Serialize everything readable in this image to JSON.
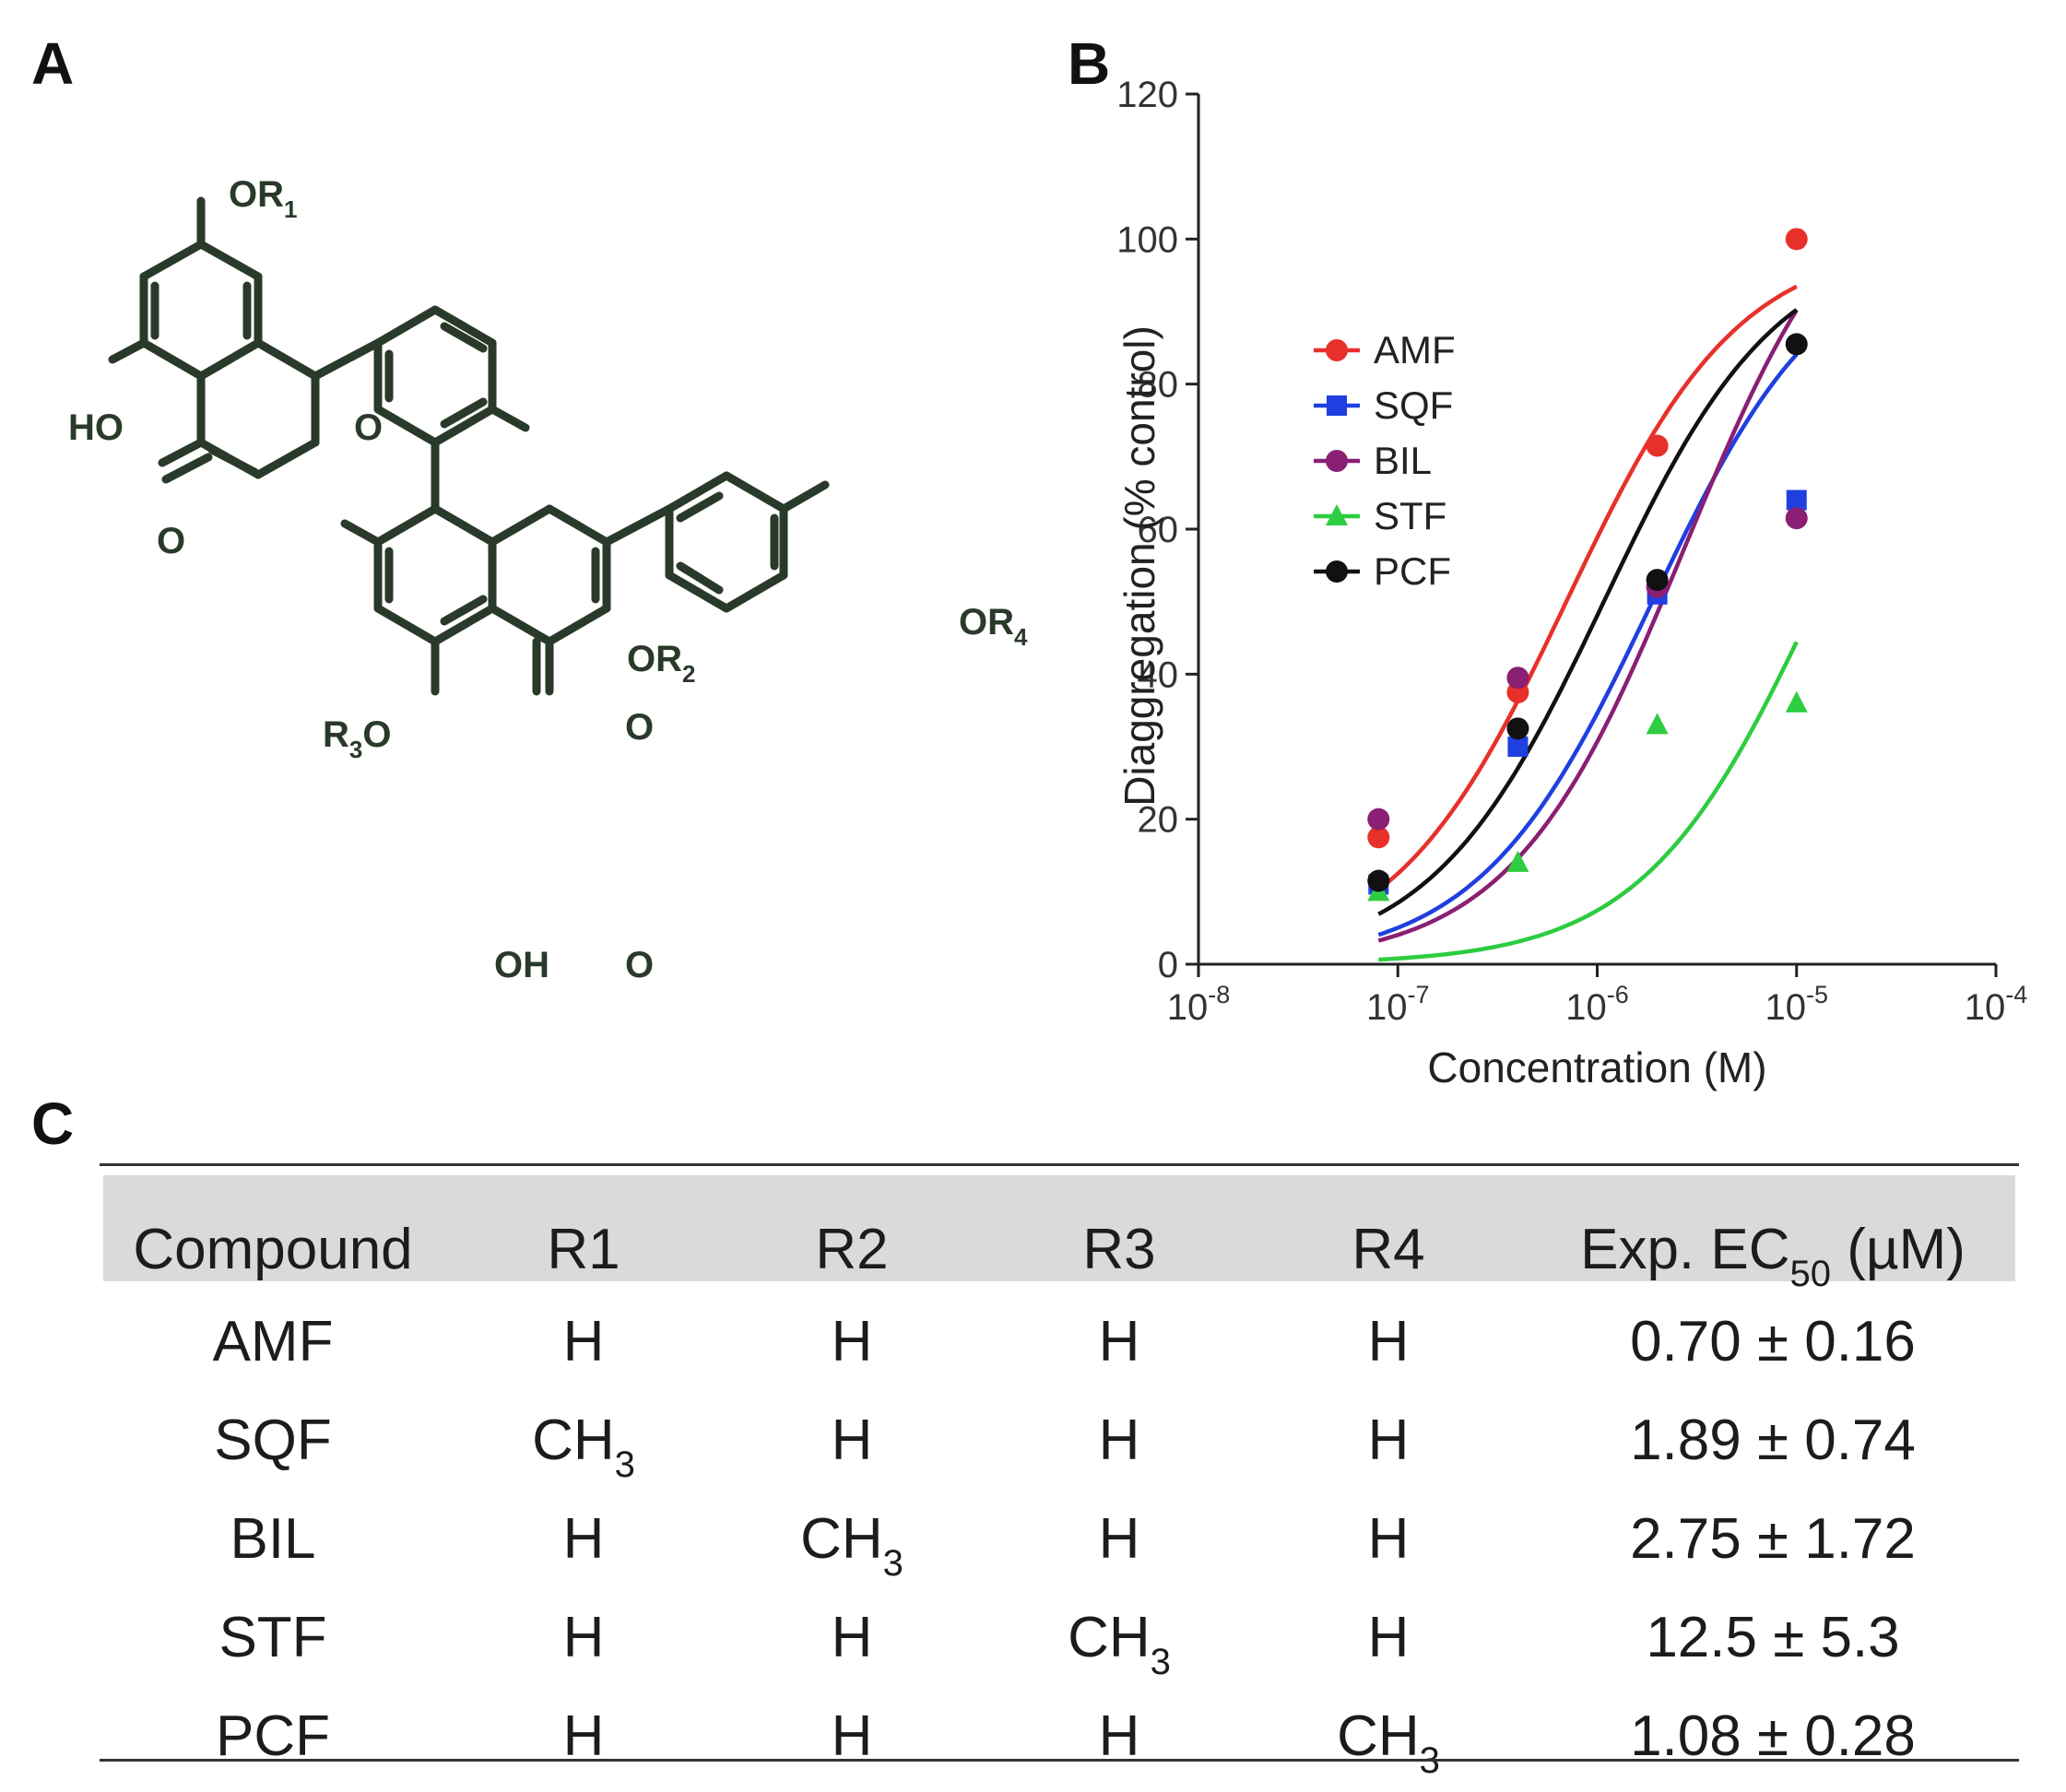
{
  "panels": {
    "a": "A",
    "b": "B",
    "c": "C"
  },
  "structure": {
    "labels": {
      "or1": "OR",
      "or1_sub": "1",
      "or2": "OR",
      "or2_sub": "2",
      "or4": "OR",
      "or4_sub": "4",
      "r3o_r": "R",
      "r3o_sub": "3",
      "r3o_o": "O",
      "ho_top": "HO",
      "o_ring1": "O",
      "o_keto1": "O",
      "o_ring2": "O",
      "oh_bottom": "OH",
      "o_keto2": "O"
    },
    "line_color": "#2a3a2a"
  },
  "chart_data": {
    "type": "scatter",
    "ylabel": "Diaggregation (% control)",
    "xlabel": "Concentration (M)",
    "x_scale": "log",
    "xlim": [
      1e-08,
      0.0001
    ],
    "ylim": [
      0,
      120
    ],
    "x_ticks": [
      {
        "base": "10",
        "exp": "-8",
        "value": 1e-08
      },
      {
        "base": "10",
        "exp": "-7",
        "value": 1e-07
      },
      {
        "base": "10",
        "exp": "-6",
        "value": 1e-06
      },
      {
        "base": "10",
        "exp": "-5",
        "value": 1e-05
      },
      {
        "base": "10",
        "exp": "-4",
        "value": 0.0001
      }
    ],
    "y_ticks": [
      0,
      20,
      40,
      60,
      80,
      100,
      120
    ],
    "legend_position": "left",
    "x": [
      8e-08,
      4e-07,
      2e-06,
      1e-05
    ],
    "series": [
      {
        "name": "AMF",
        "color": "#e8302a",
        "marker": "circle",
        "values": [
          17.5,
          37.5,
          71.5,
          100
        ],
        "ec50_uM": 0.7,
        "top": 100
      },
      {
        "name": "SQF",
        "color": "#1f3fe0",
        "marker": "square",
        "values": [
          11,
          30,
          51,
          64
        ],
        "ec50_uM": 1.89,
        "top": 100
      },
      {
        "name": "BIL",
        "color": "#8a1f73",
        "marker": "circle",
        "values": [
          20,
          39.5,
          52,
          61.5
        ],
        "ec50_uM": 2.75,
        "top": 115
      },
      {
        "name": "STF",
        "color": "#2ecc40",
        "marker": "triangle",
        "values": [
          10,
          14,
          33,
          36
        ],
        "ec50_uM": 12.5,
        "top": 100
      },
      {
        "name": "PCF",
        "color": "#111111",
        "marker": "circle",
        "values": [
          11.5,
          32.5,
          53,
          85.5
        ],
        "ec50_uM": 1.08,
        "top": 100
      }
    ]
  },
  "table": {
    "headers": [
      "Compound",
      "R1",
      "R2",
      "R3",
      "R4"
    ],
    "ec50_header": {
      "pre": "Exp. EC",
      "sub": "50",
      "post": " (µM)"
    },
    "rows": [
      {
        "compound": "AMF",
        "r1": "H",
        "r2": "H",
        "r3": "H",
        "r4": "H",
        "ec50": "0.70 ± 0.16"
      },
      {
        "compound": "SQF",
        "r1": {
          "base": "CH",
          "sub": "3"
        },
        "r2": "H",
        "r3": "H",
        "r4": "H",
        "ec50": "1.89 ± 0.74"
      },
      {
        "compound": "BIL",
        "r1": "H",
        "r2": {
          "base": "CH",
          "sub": "3"
        },
        "r3": "H",
        "r4": "H",
        "ec50": "2.75 ± 1.72"
      },
      {
        "compound": "STF",
        "r1": "H",
        "r2": "H",
        "r3": {
          "base": "CH",
          "sub": "3"
        },
        "r4": "H",
        "ec50": "12.5 ± 5.3"
      },
      {
        "compound": "PCF",
        "r1": "H",
        "r2": "H",
        "r3": "H",
        "r4": {
          "base": "CH",
          "sub": "3"
        },
        "ec50": "1.08 ± 0.28"
      }
    ]
  }
}
